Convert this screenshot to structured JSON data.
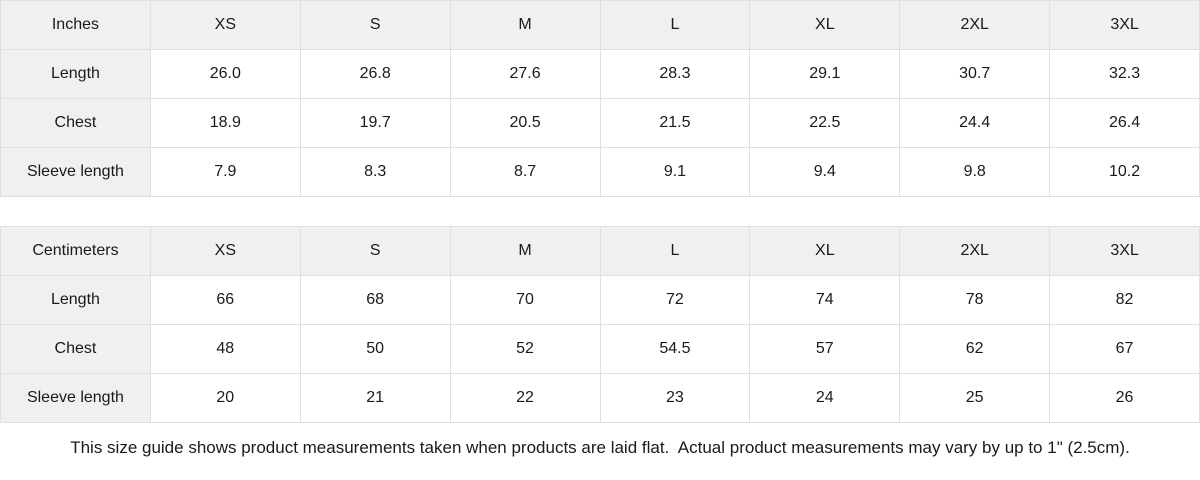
{
  "colors": {
    "header_bg": "#f0f0f0",
    "border": "#e0e0e0",
    "cell_bg": "#ffffff",
    "text": "#1a1a1a"
  },
  "tables": [
    {
      "unit_label": "Inches",
      "columns": [
        "XS",
        "S",
        "M",
        "L",
        "XL",
        "2XL",
        "3XL"
      ],
      "rows": [
        {
          "label": "Length",
          "values": [
            "26.0",
            "26.8",
            "27.6",
            "28.3",
            "29.1",
            "30.7",
            "32.3"
          ]
        },
        {
          "label": "Chest",
          "values": [
            "18.9",
            "19.7",
            "20.5",
            "21.5",
            "22.5",
            "24.4",
            "26.4"
          ]
        },
        {
          "label": "Sleeve length",
          "values": [
            "7.9",
            "8.3",
            "8.7",
            "9.1",
            "9.4",
            "9.8",
            "10.2"
          ]
        }
      ]
    },
    {
      "unit_label": "Centimeters",
      "columns": [
        "XS",
        "S",
        "M",
        "L",
        "XL",
        "2XL",
        "3XL"
      ],
      "rows": [
        {
          "label": "Length",
          "values": [
            "66",
            "68",
            "70",
            "72",
            "74",
            "78",
            "82"
          ]
        },
        {
          "label": "Chest",
          "values": [
            "48",
            "50",
            "52",
            "54.5",
            "57",
            "62",
            "67"
          ]
        },
        {
          "label": "Sleeve length",
          "values": [
            "20",
            "21",
            "22",
            "23",
            "24",
            "25",
            "26"
          ]
        }
      ]
    }
  ],
  "footer": {
    "note": "This size guide shows product measurements taken when products are laid flat.  Actual product measurements may vary by up to 1\" (2.5cm)."
  }
}
